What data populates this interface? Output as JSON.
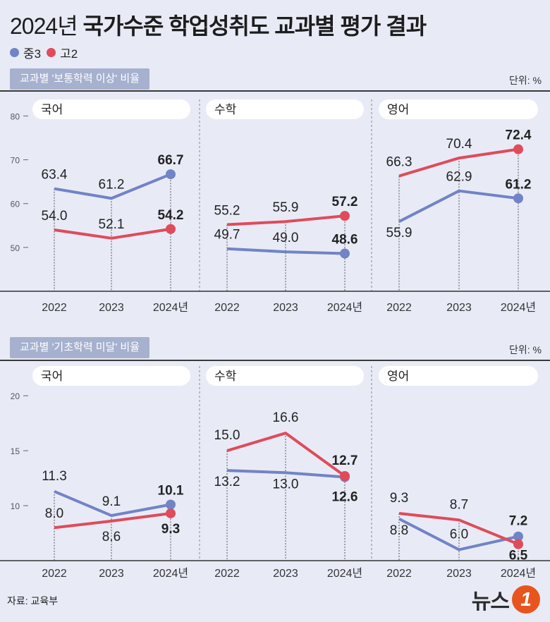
{
  "title_year": "2024년",
  "title_rest": "국가수준 학업성취도 교과별 평가 결과",
  "legend": [
    {
      "label": "중3",
      "color": "#7084c6"
    },
    {
      "label": "고2",
      "color": "#e04b5a"
    }
  ],
  "unit": "단위: %",
  "source": "자료: 교육부",
  "logo": {
    "text": "뉴스",
    "mark": "1"
  },
  "chart_data": [
    {
      "type": "line",
      "section": "교과별 '보통학력 이상' 비율",
      "ylim": [
        40,
        82
      ],
      "yticks": [
        50,
        60,
        70,
        80
      ],
      "categories": [
        "2022",
        "2023",
        "2024년"
      ],
      "panels": [
        {
          "subject": "국어",
          "series": [
            {
              "name": "중3",
              "values": [
                63.4,
                61.2,
                66.7
              ]
            },
            {
              "name": "고2",
              "values": [
                54.0,
                52.1,
                54.2
              ]
            }
          ]
        },
        {
          "subject": "수학",
          "series": [
            {
              "name": "중3",
              "values": [
                49.7,
                49.0,
                48.6
              ]
            },
            {
              "name": "고2",
              "values": [
                55.2,
                55.9,
                57.2
              ]
            }
          ]
        },
        {
          "subject": "영어",
          "series": [
            {
              "name": "중3",
              "values": [
                55.9,
                62.9,
                61.2
              ]
            },
            {
              "name": "고2",
              "values": [
                66.3,
                70.4,
                72.4
              ]
            }
          ]
        }
      ]
    },
    {
      "type": "line",
      "section": "교과별 '기초학력 미달' 비율",
      "ylim": [
        5,
        22
      ],
      "yticks": [
        10,
        15,
        20
      ],
      "categories": [
        "2022",
        "2023",
        "2024년"
      ],
      "panels": [
        {
          "subject": "국어",
          "series": [
            {
              "name": "중3",
              "values": [
                11.3,
                9.1,
                10.1
              ]
            },
            {
              "name": "고2",
              "values": [
                8.0,
                8.6,
                9.3
              ]
            }
          ]
        },
        {
          "subject": "수학",
          "series": [
            {
              "name": "중3",
              "values": [
                13.2,
                13.0,
                12.6
              ]
            },
            {
              "name": "고2",
              "values": [
                15.0,
                16.6,
                12.7
              ]
            }
          ]
        },
        {
          "subject": "영어",
          "series": [
            {
              "name": "중3",
              "values": [
                8.8,
                6.0,
                7.2
              ]
            },
            {
              "name": "고2",
              "values": [
                9.3,
                8.7,
                6.5
              ]
            }
          ]
        }
      ]
    }
  ]
}
